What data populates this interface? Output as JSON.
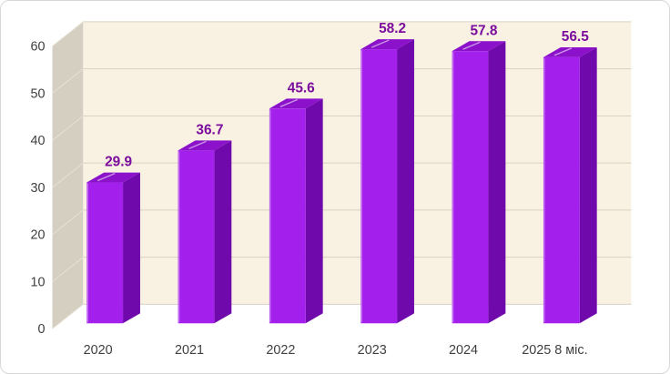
{
  "chart_data": {
    "type": "bar",
    "projection": "3d-column",
    "title": "",
    "xlabel": "",
    "ylabel": "",
    "categories": [
      "2020",
      "2021",
      "2022",
      "2023",
      "2024",
      "2025 8 міс."
    ],
    "values": [
      29.9,
      36.7,
      45.6,
      58.2,
      57.8,
      56.5
    ],
    "ylim": [
      0,
      60
    ],
    "y_ticks": [
      0,
      10,
      20,
      30,
      40,
      50,
      60
    ],
    "grid": true,
    "legend": false,
    "data_labels_shown": true
  },
  "style": {
    "bar_front": "#A21FEC",
    "bar_side": "#7009AC",
    "bar_top": "#8B11CA",
    "bar_gloss": "rgba(255,255,255,0.55)",
    "bar_left_highlight": "rgba(255,255,255,0.35)",
    "data_label_color": "#7B0D9D",
    "wall_back": "#F9F2E3",
    "wall_side": "#D5CFC2",
    "grid_back": "#D9D1BF",
    "grid_side": "#E7E1D5",
    "axis_text": "#3F3F3F",
    "chart_border": "#D8D8D8",
    "chart_bg": "#FFFFFF"
  }
}
